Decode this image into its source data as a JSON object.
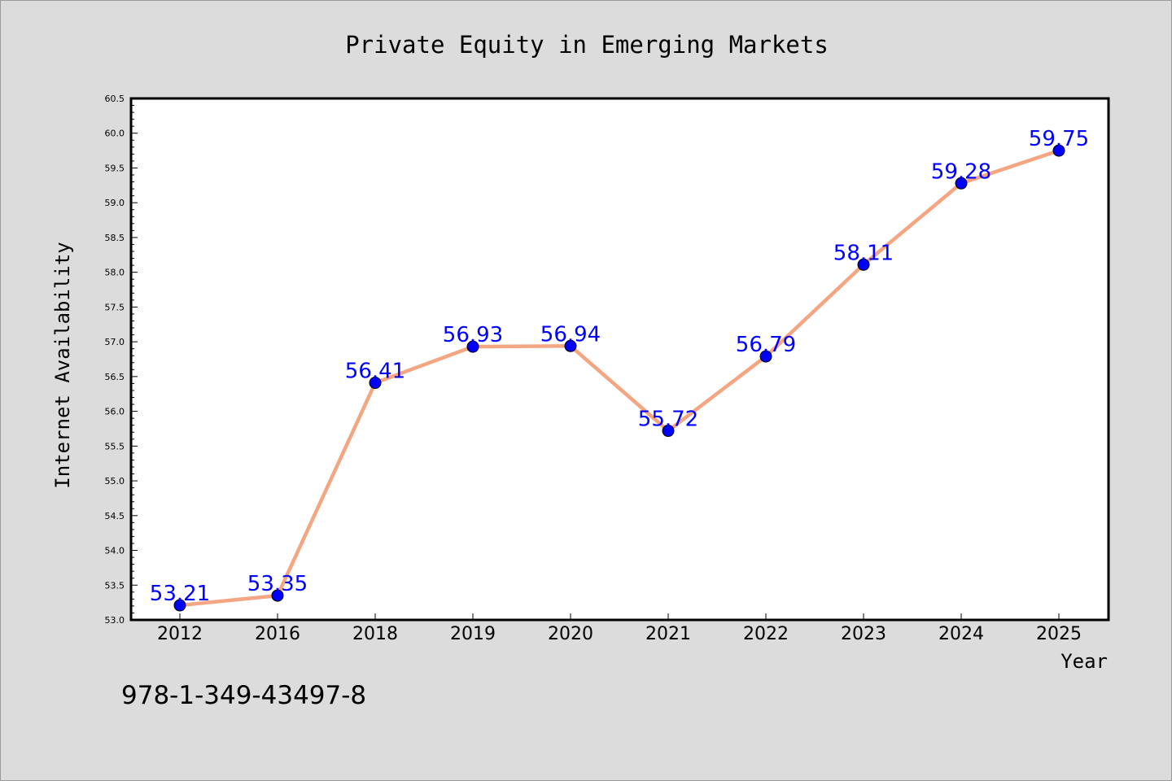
{
  "chart_data": {
    "type": "line",
    "title": "Private Equity in Emerging Markets",
    "xlabel": "Year",
    "ylabel": "Internet Availability",
    "categories": [
      "2012",
      "2016",
      "2018",
      "2019",
      "2020",
      "2021",
      "2022",
      "2023",
      "2024",
      "2025"
    ],
    "series": [
      {
        "values": [
          53.21,
          53.35,
          56.41,
          56.93,
          56.94,
          55.72,
          56.79,
          58.11,
          59.28,
          59.75
        ],
        "labels": [
          "53.21",
          "53.35",
          "56.41",
          "56.93",
          "56.94",
          "55.72",
          "56.79",
          "58.11",
          "59.28",
          "59.75"
        ],
        "line_color": "#f4a582",
        "marker_color": "#0000ff",
        "label_color": "#0000ff"
      }
    ],
    "ylim": [
      53.0,
      60.5
    ],
    "y_ticks": [
      "53.0",
      "53.5",
      "54.0",
      "54.5",
      "55.0",
      "55.5",
      "56.0",
      "56.5",
      "57.0",
      "57.5",
      "58.0",
      "58.5",
      "59.0",
      "59.5",
      "60.0",
      "60.5"
    ],
    "grid": false,
    "legend": "none",
    "background_color": "#dcdcdc",
    "plot_background_color": "#ffffff"
  },
  "footnote": "978-1-349-43497-8"
}
